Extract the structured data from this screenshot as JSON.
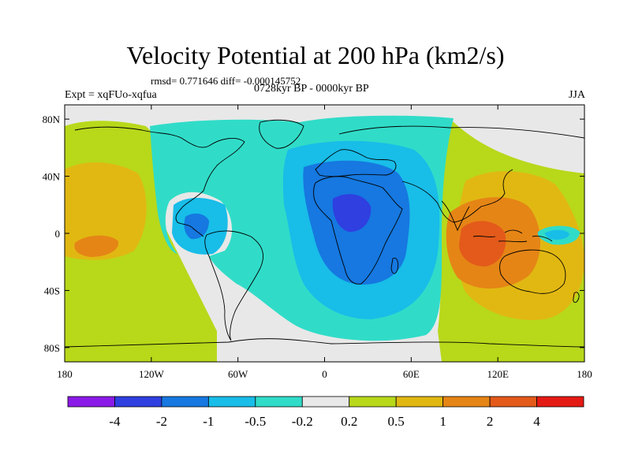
{
  "header": {
    "title": "Velocity Potential at 200 hPa (km2/s)",
    "stats": "rmsd= 0.771646 diff= -0.000145752",
    "experiment": "Expt = xqFUo-xqfua",
    "period": "0728kyr BP - 0000kyr BP",
    "season": "JJA"
  },
  "map": {
    "type": "filled-contour-map",
    "projection": "cylindrical-equidistant",
    "lon_range": [
      -180,
      180
    ],
    "lat_range": [
      -90,
      90
    ],
    "x_ticks": [
      {
        "lon": -180,
        "label": "180"
      },
      {
        "lon": -120,
        "label": "120W"
      },
      {
        "lon": -60,
        "label": "60W"
      },
      {
        "lon": 0,
        "label": "0"
      },
      {
        "lon": 60,
        "label": "60E"
      },
      {
        "lon": 120,
        "label": "120E"
      },
      {
        "lon": 180,
        "label": "180"
      }
    ],
    "y_ticks": [
      {
        "lat": 80,
        "label": "80N"
      },
      {
        "lat": 40,
        "label": "40N"
      },
      {
        "lat": 0,
        "label": "0"
      },
      {
        "lat": -40,
        "label": "40S"
      },
      {
        "lat": -80,
        "label": "80S"
      }
    ],
    "background_color": "#e8e8e8",
    "coastline_color": "#000000"
  },
  "colorbar": {
    "colors": [
      "#8b1ae8",
      "#2f3fe0",
      "#1678e0",
      "#18bde8",
      "#30dcc8",
      "#e8e8e8",
      "#b8d81a",
      "#e1b812",
      "#e58516",
      "#e35a1a",
      "#e41a14"
    ],
    "labels": [
      "-4",
      "-2",
      "-1",
      "-0.5",
      "-0.2",
      "0.2",
      "0.5",
      "1",
      "2",
      "4"
    ]
  }
}
